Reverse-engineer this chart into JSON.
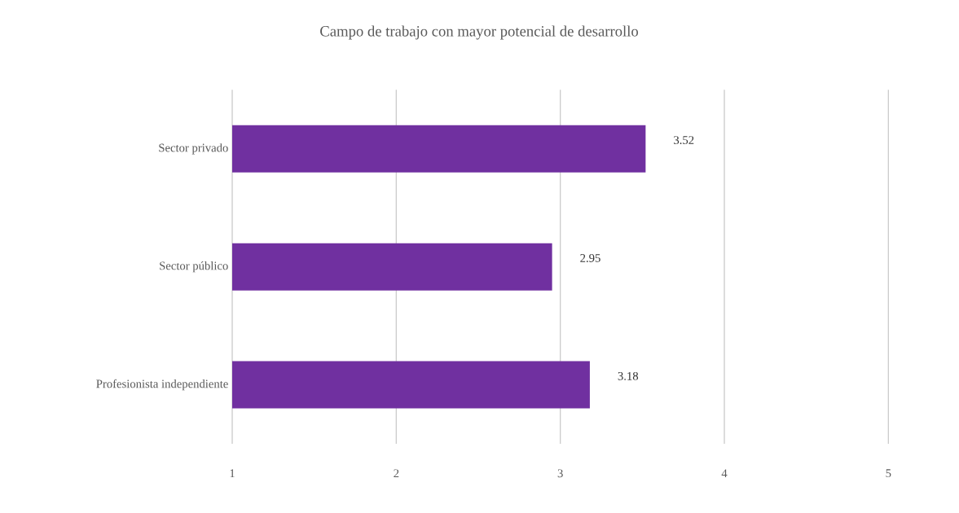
{
  "chart_data": {
    "type": "bar",
    "orientation": "horizontal",
    "title": "Campo de trabajo con mayor potencial de desarrollo",
    "categories": [
      "Sector privado",
      "Sector público",
      "Profesionista independiente"
    ],
    "values": [
      3.52,
      2.95,
      3.18
    ],
    "color": "#7030a0",
    "xlim": [
      1,
      5
    ],
    "xticks": [
      1,
      2,
      3,
      4,
      5
    ],
    "grid": "x",
    "data_labels": true
  }
}
